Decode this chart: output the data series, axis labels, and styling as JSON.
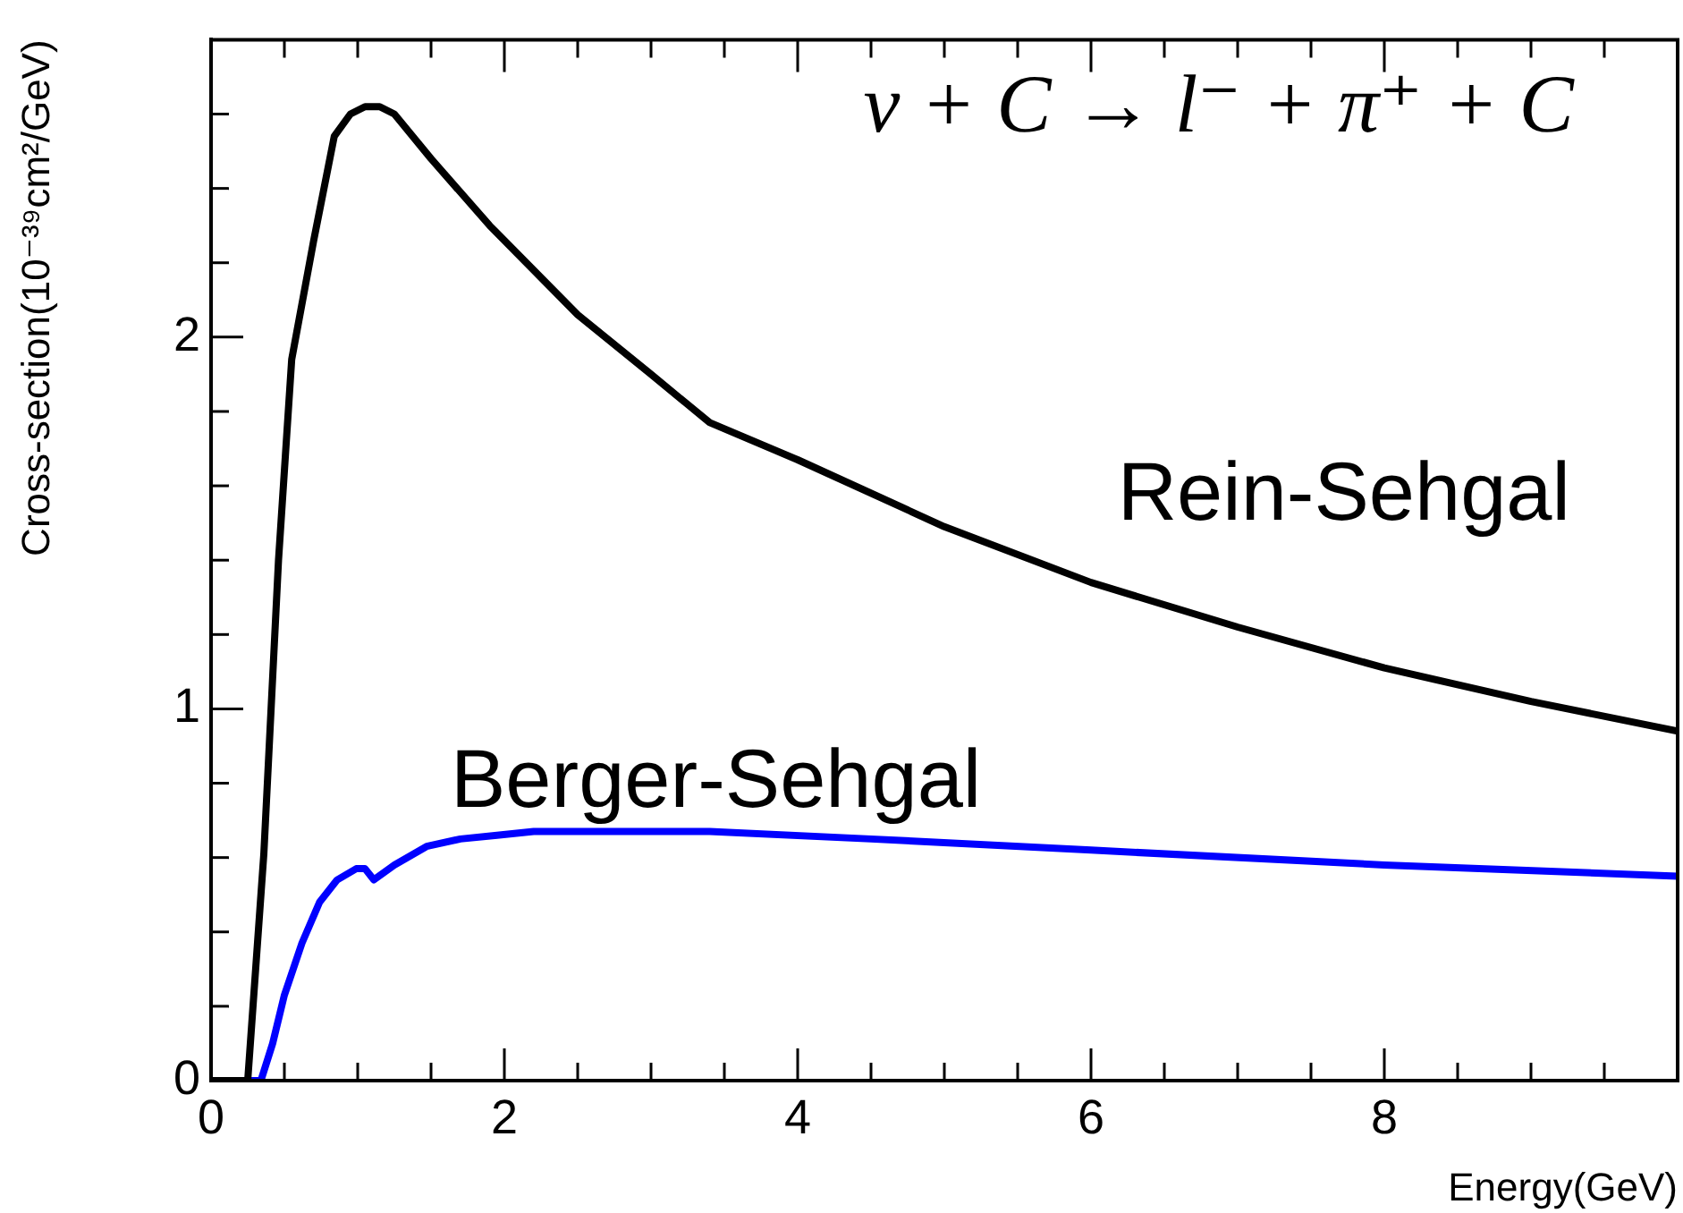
{
  "chart_data": {
    "type": "line",
    "xlabel": "Energy(GeV)",
    "ylabel": "Cross-section(10⁻³⁹cm²/GeV)",
    "annotations": [
      "ν + C → l⁻ + π⁺ + C"
    ],
    "xlim": [
      0,
      10
    ],
    "ylim": [
      0,
      2.8
    ],
    "xticks": [
      0,
      {
        "value": 0.5,
        "label": null
      },
      {
        "value": 1,
        "label": null
      },
      {
        "value": 1.5,
        "label": null
      },
      2,
      {
        "value": 2.5,
        "label": null
      },
      {
        "value": 3,
        "label": null
      },
      {
        "value": 3.5,
        "label": null
      },
      4,
      {
        "value": 4.5,
        "label": null
      },
      {
        "value": 5,
        "label": null
      },
      {
        "value": 5.5,
        "label": null
      },
      6,
      {
        "value": 6.5,
        "label": null
      },
      {
        "value": 7,
        "label": null
      },
      {
        "value": 7.5,
        "label": null
      },
      8,
      {
        "value": 8.5,
        "label": null
      },
      {
        "value": 9,
        "label": null
      },
      {
        "value": 9.5,
        "label": null
      }
    ],
    "yticks": [
      0,
      {
        "value": 0.2,
        "label": null
      },
      {
        "value": 0.4,
        "label": null
      },
      {
        "value": 0.6,
        "label": null
      },
      {
        "value": 0.8,
        "label": null
      },
      1,
      {
        "value": 1.2,
        "label": null
      },
      {
        "value": 1.4,
        "label": null
      },
      {
        "value": 1.6,
        "label": null
      },
      {
        "value": 1.8,
        "label": null
      },
      2,
      {
        "value": 2.2,
        "label": null
      },
      {
        "value": 2.4,
        "label": null
      },
      {
        "value": 2.6,
        "label": null
      }
    ],
    "grid": false,
    "legend": false,
    "marker": "none",
    "line_style": "solid",
    "series": [
      {
        "name": "Rein-Sehgal",
        "color": "#000000",
        "x": [
          0,
          0.25,
          0.36,
          0.46,
          0.55,
          0.7,
          0.84,
          0.95,
          1.05,
          1.15,
          1.25,
          1.5,
          1.9,
          2.5,
          3.0,
          3.4,
          4.0,
          5.0,
          6.0,
          7.0,
          8.0,
          9.0,
          10.0
        ],
        "values": [
          0,
          0,
          0.61,
          1.4,
          1.94,
          2.26,
          2.54,
          2.6,
          2.62,
          2.62,
          2.6,
          2.48,
          2.3,
          2.06,
          1.9,
          1.77,
          1.67,
          1.49,
          1.34,
          1.22,
          1.11,
          1.02,
          0.94
        ]
      },
      {
        "name": "Berger-Sehgal",
        "color": "#0000ff",
        "x": [
          0,
          0.34,
          0.42,
          0.5,
          0.62,
          0.74,
          0.86,
          0.99,
          1.05,
          1.11,
          1.25,
          1.47,
          1.7,
          1.95,
          2.2,
          2.6,
          3.4,
          4.5,
          6.0,
          8.0,
          10.0
        ],
        "values": [
          0,
          0,
          0.1,
          0.23,
          0.37,
          0.48,
          0.54,
          0.57,
          0.57,
          0.54,
          0.58,
          0.63,
          0.65,
          0.66,
          0.67,
          0.67,
          0.67,
          0.65,
          0.62,
          0.58,
          0.55
        ]
      }
    ]
  }
}
